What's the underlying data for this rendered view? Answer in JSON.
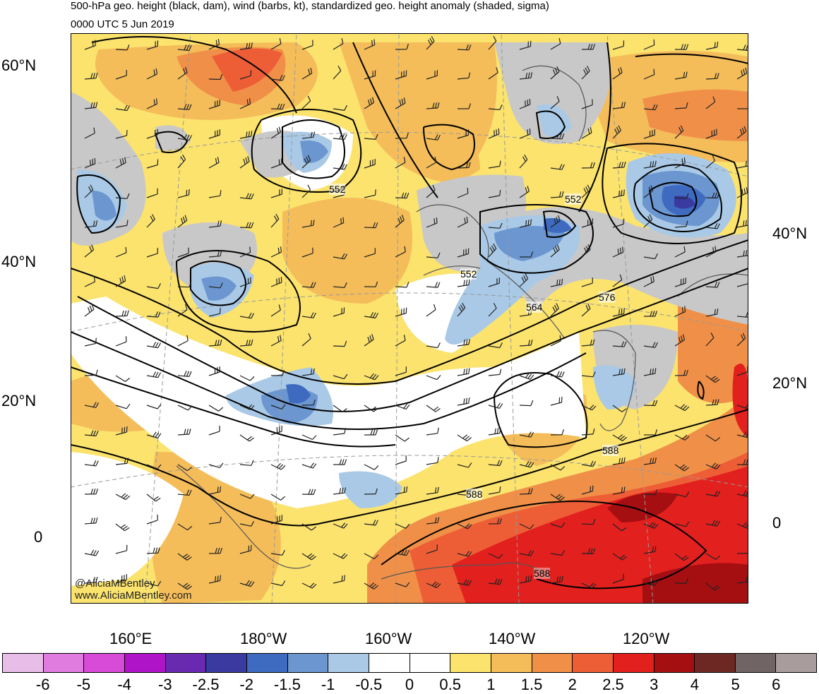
{
  "title": {
    "line1": "500-hPa geo. height (black, dam), wind (barbs, kt), standardized geo. height anomaly (shaded, sigma)",
    "line2": "0000 UTC 5 Jun 2019"
  },
  "map": {
    "region": "North Pacific",
    "left_lat_labels": [
      "60°N",
      "40°N",
      "20°N",
      "0"
    ],
    "right_lat_labels": [
      "40°N",
      "20°N",
      "0"
    ],
    "lon_labels": [
      "160°E",
      "180°W",
      "160°W",
      "140°W",
      "120°W"
    ],
    "contour_labels": [
      "552",
      "552",
      "552",
      "564",
      "576",
      "588",
      "588",
      "588"
    ],
    "credit": {
      "handle": "@AliciaMBentley",
      "url": "www.AliciaMBentley.com"
    }
  },
  "colorbar": {
    "colors": [
      "#e8bde8",
      "#e07ce0",
      "#d84ad8",
      "#b014c8",
      "#6a2ab0",
      "#3a3aa0",
      "#3e6bbf",
      "#6b96d0",
      "#a9c9e6",
      "#ffffff",
      "#ffffff",
      "#fbe36e",
      "#f4bd5a",
      "#f09048",
      "#ee5e36",
      "#e2201e",
      "#a50f12",
      "#6e2824",
      "#706464",
      "#a89c9c"
    ],
    "tick_labels": [
      "-6",
      "-5",
      "-4",
      "-3",
      "-2.5",
      "-2",
      "-1.5",
      "-1",
      "-0.5",
      "0",
      "0.5",
      "1",
      "1.5",
      "2",
      "2.5",
      "3",
      "4",
      "5",
      "6"
    ]
  }
}
